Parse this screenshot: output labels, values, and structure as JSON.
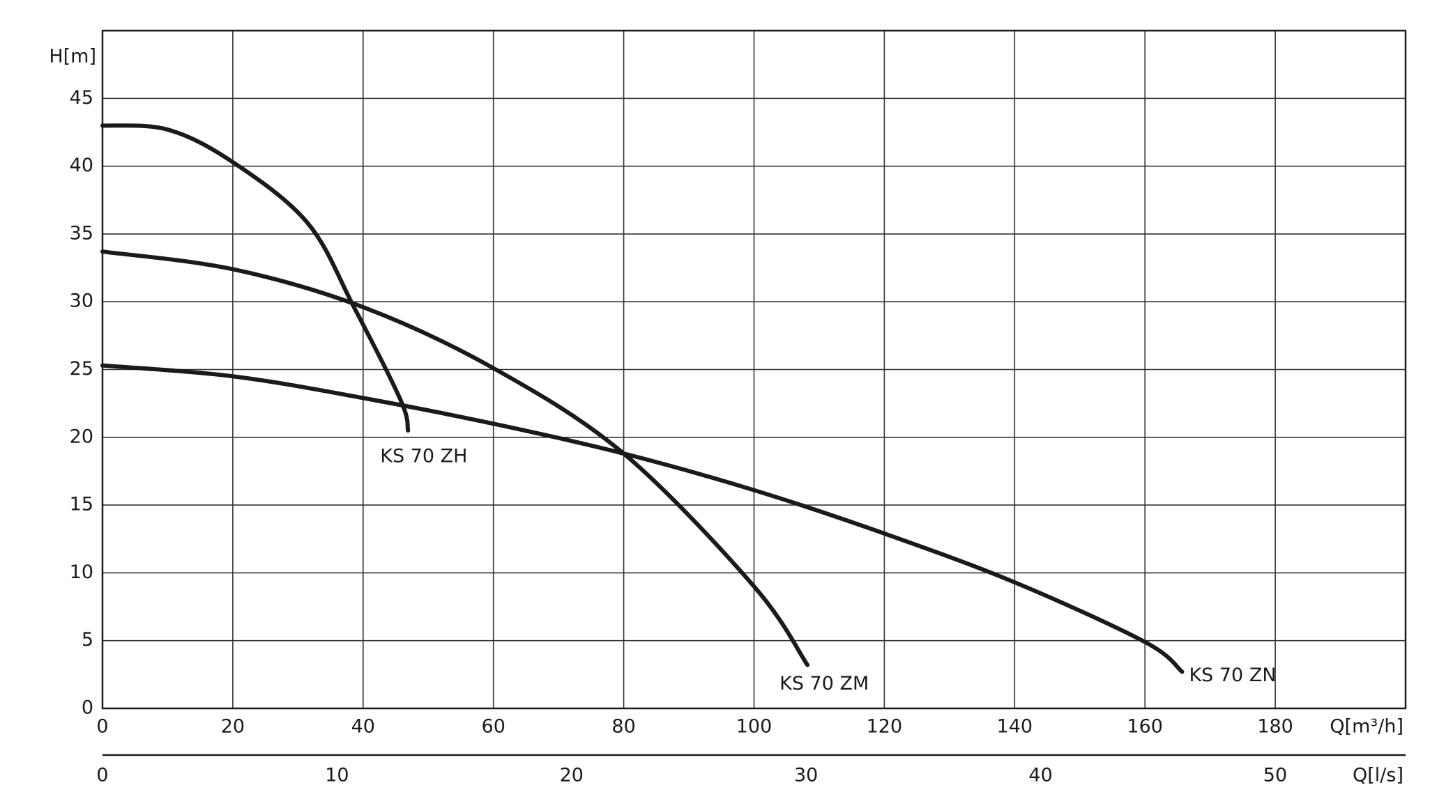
{
  "chart_data": {
    "type": "line",
    "y_label": "H[m]",
    "x_label": "Q[m³/h]",
    "x2_label": "Q[l/s]",
    "xlim": [
      0,
      200
    ],
    "xticks": [
      0,
      20,
      40,
      60,
      80,
      100,
      120,
      140,
      160,
      180
    ],
    "ylim": [
      0,
      50
    ],
    "yticks": [
      0,
      5,
      10,
      15,
      20,
      25,
      30,
      35,
      40,
      45
    ],
    "x2lim": [
      0,
      55.56
    ],
    "x2ticks": [
      0,
      10,
      20,
      30,
      40,
      50
    ],
    "grid": true,
    "series": [
      {
        "name": "KS 70 ZH",
        "color": "#1a1a1a",
        "x": [
          0,
          10,
          20,
          31.5,
          38.6,
          45.8,
          46.9
        ],
        "values": [
          43,
          42.7,
          40.3,
          35.8,
          29.6,
          22.7,
          20.5
        ]
      },
      {
        "name": "KS 70 ZM",
        "color": "#1a1a1a",
        "x": [
          0,
          20,
          40,
          60,
          80,
          100,
          108.2
        ],
        "values": [
          33.7,
          32.4,
          29.6,
          25.1,
          18.8,
          9.0,
          3.2
        ]
      },
      {
        "name": "KS 70 ZN",
        "color": "#1a1a1a",
        "x": [
          0,
          20,
          40,
          60,
          80,
          100,
          120,
          140,
          160,
          165.7
        ],
        "values": [
          25.3,
          24.5,
          22.9,
          21.0,
          18.8,
          16.1,
          12.9,
          9.3,
          4.9,
          2.7
        ]
      }
    ]
  }
}
